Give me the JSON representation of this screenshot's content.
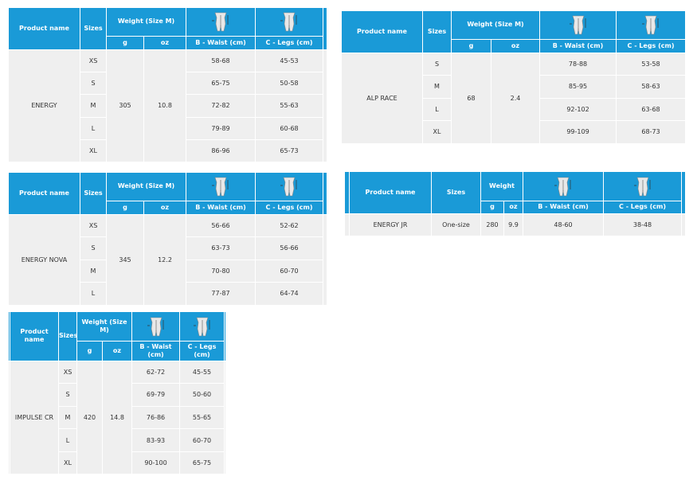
{
  "colors": {
    "header": "#1a9ad7",
    "body": "#efefef"
  },
  "icons": {
    "waist": "body-measure-waist-icon",
    "legs": "body-measure-legs-icon"
  },
  "tables": [
    {
      "id": "energy",
      "headers": {
        "product": "Product name",
        "sizes": "Sizes",
        "weight": "Weight (Size M)",
        "g": "g",
        "oz": "oz",
        "waist": "B - Waist (cm)",
        "legs": "C - Legs (cm)"
      },
      "product": "ENERGY",
      "g": "305",
      "oz": "10.8",
      "rows": [
        {
          "size": "XS",
          "waist": "58-68",
          "legs": "45-53"
        },
        {
          "size": "S",
          "waist": "65-75",
          "legs": "50-58"
        },
        {
          "size": "M",
          "waist": "72-82",
          "legs": "55-63"
        },
        {
          "size": "L",
          "waist": "79-89",
          "legs": "60-68"
        },
        {
          "size": "XL",
          "waist": "86-96",
          "legs": "65-73"
        }
      ]
    },
    {
      "id": "alp-race",
      "headers": {
        "product": "Product name",
        "sizes": "Sizes",
        "weight": "Weight (Size M)",
        "g": "g",
        "oz": "oz",
        "waist": "B - Waist (cm)",
        "legs": "C - Legs (cm)"
      },
      "product": "ALP RACE",
      "g": "68",
      "oz": "2.4",
      "rows": [
        {
          "size": "S",
          "waist": "78-88",
          "legs": "53-58"
        },
        {
          "size": "M",
          "waist": "85-95",
          "legs": "58-63"
        },
        {
          "size": "L",
          "waist": "92-102",
          "legs": "63-68"
        },
        {
          "size": "XL",
          "waist": "99-109",
          "legs": "68-73"
        }
      ]
    },
    {
      "id": "energy-nova",
      "headers": {
        "product": "Product name",
        "sizes": "Sizes",
        "weight": "Weight (Size M)",
        "g": "g",
        "oz": "oz",
        "waist": "B - Waist (cm)",
        "legs": "C - Legs (cm)"
      },
      "product": "ENERGY NOVA",
      "g": "345",
      "oz": "12.2",
      "rows": [
        {
          "size": "XS",
          "waist": "56-66",
          "legs": "52-62"
        },
        {
          "size": "S",
          "waist": "63-73",
          "legs": "56-66"
        },
        {
          "size": "M",
          "waist": "70-80",
          "legs": "60-70"
        },
        {
          "size": "L",
          "waist": "77-87",
          "legs": "64-74"
        }
      ]
    },
    {
      "id": "energy-jr",
      "headers": {
        "product": "Product name",
        "sizes": "Sizes",
        "weight": "Weight",
        "g": "g",
        "oz": "oz",
        "waist": "B - Waist (cm)",
        "legs": "C - Legs (cm)"
      },
      "product": "ENERGY JR",
      "g": "280",
      "oz": "9.9",
      "rows": [
        {
          "size": "One-size",
          "waist": "48-60",
          "legs": "38-48"
        }
      ]
    },
    {
      "id": "impulse-cr",
      "headers": {
        "product": "Product name",
        "sizes": "Sizes",
        "weight": "Weight (Size M)",
        "g": "g",
        "oz": "oz",
        "waist": "B - Waist (cm)",
        "legs": "C - Legs (cm)"
      },
      "product": "IMPULSE CR",
      "g": "420",
      "oz": "14.8",
      "rows": [
        {
          "size": "XS",
          "waist": "62-72",
          "legs": "45-55"
        },
        {
          "size": "S",
          "waist": "69-79",
          "legs": "50-60"
        },
        {
          "size": "M",
          "waist": "76-86",
          "legs": "55-65"
        },
        {
          "size": "L",
          "waist": "83-93",
          "legs": "60-70"
        },
        {
          "size": "XL",
          "waist": "90-100",
          "legs": "65-75"
        }
      ]
    }
  ]
}
